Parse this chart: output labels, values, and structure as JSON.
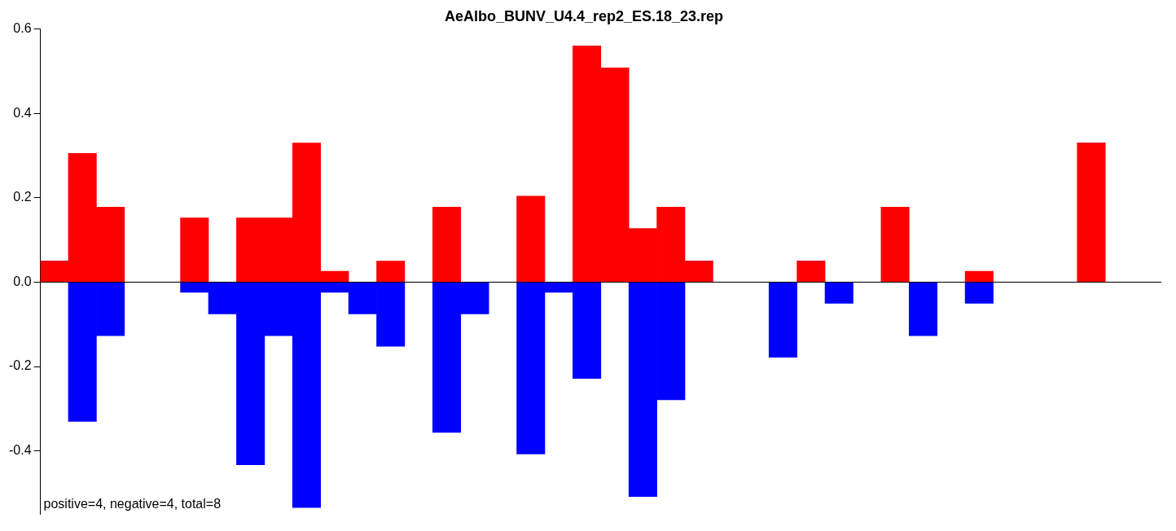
{
  "chart_data": {
    "type": "bar",
    "title": "AeAlbo_BUNV_U4.4_rep2_ES.18_23.rep",
    "categories": [
      null,
      null,
      null,
      null,
      null,
      null,
      null,
      null,
      null,
      null,
      null,
      null,
      null,
      null,
      null,
      null,
      null,
      null,
      null,
      null,
      null,
      null,
      null,
      null,
      null,
      null,
      null,
      null,
      null,
      null,
      null,
      null,
      null,
      null,
      null,
      null,
      null,
      null,
      null,
      null
    ],
    "stacked": true,
    "series": [
      {
        "color": "#ff0000",
        "values": [
          0.05,
          0.305,
          0.178,
          0,
          0,
          0.152,
          0,
          0.152,
          0.152,
          0.33,
          0.026,
          0,
          0.05,
          0,
          0.178,
          0,
          0,
          0.204,
          0,
          0.56,
          0.508,
          0.127,
          0.178,
          0.05,
          0,
          0,
          0,
          0.05,
          0,
          0,
          0.178,
          0,
          0,
          0.026,
          0,
          0,
          0,
          0.33,
          0,
          0
        ]
      },
      {
        "color": "#0000ff",
        "values": [
          0,
          -0.33,
          -0.127,
          0,
          0,
          -0.024,
          -0.075,
          -0.433,
          -0.127,
          -0.534,
          -0.024,
          -0.075,
          -0.152,
          0,
          -0.356,
          -0.075,
          0,
          -0.407,
          -0.024,
          -0.228,
          0,
          -0.508,
          -0.279,
          0,
          0,
          0,
          -0.178,
          0,
          -0.05,
          0,
          0,
          -0.127,
          0,
          -0.05,
          0,
          0,
          0,
          0,
          0,
          0
        ]
      }
    ],
    "ylim": [
      -0.55,
      0.6
    ],
    "yticks": [
      {
        "value": -0.4,
        "label": "-0.4"
      },
      {
        "value": -0.2,
        "label": "-0.2"
      },
      {
        "value": 0,
        "label": "0.0"
      },
      {
        "value": 0.2,
        "label": "0.2"
      },
      {
        "value": 0.4,
        "label": "0.4"
      },
      {
        "value": 0.6,
        "label": "0.6"
      }
    ],
    "ref_lines": [
      {
        "axis": "y",
        "value": 0,
        "color": "#000000"
      }
    ],
    "annotations": [
      "positive=4, negative=4, total=8"
    ],
    "grid": false,
    "legend": false
  }
}
